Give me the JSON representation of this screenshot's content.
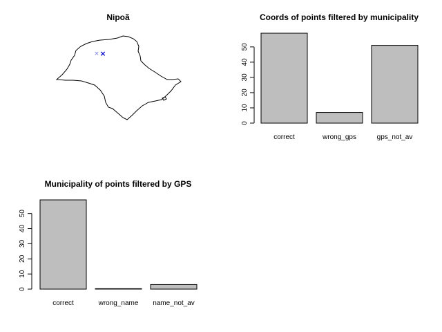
{
  "chart_data": [
    {
      "type": "map",
      "title": "Nipoã",
      "point_color": "#0000cc",
      "outline_color": "#000000"
    },
    {
      "type": "bar",
      "title": "Coords of points filtered by municipality",
      "categories": [
        "correct",
        "wrong_gps",
        "gps_not_av"
      ],
      "values": [
        59,
        7,
        51
      ],
      "yticks": [
        0,
        10,
        20,
        30,
        40,
        50
      ],
      "ylim": [
        0,
        59
      ],
      "bar_color": "#bebebe",
      "xlabel": "",
      "ylabel": ""
    },
    {
      "type": "bar",
      "title": "Municipality of points filtered by GPS",
      "categories": [
        "correct",
        "wrong_name",
        "name_not_av"
      ],
      "values": [
        59,
        0.3,
        3
      ],
      "yticks": [
        0,
        10,
        20,
        30,
        40,
        50
      ],
      "ylim": [
        0,
        59
      ],
      "bar_color": "#bebebe",
      "xlabel": "",
      "ylabel": ""
    }
  ]
}
